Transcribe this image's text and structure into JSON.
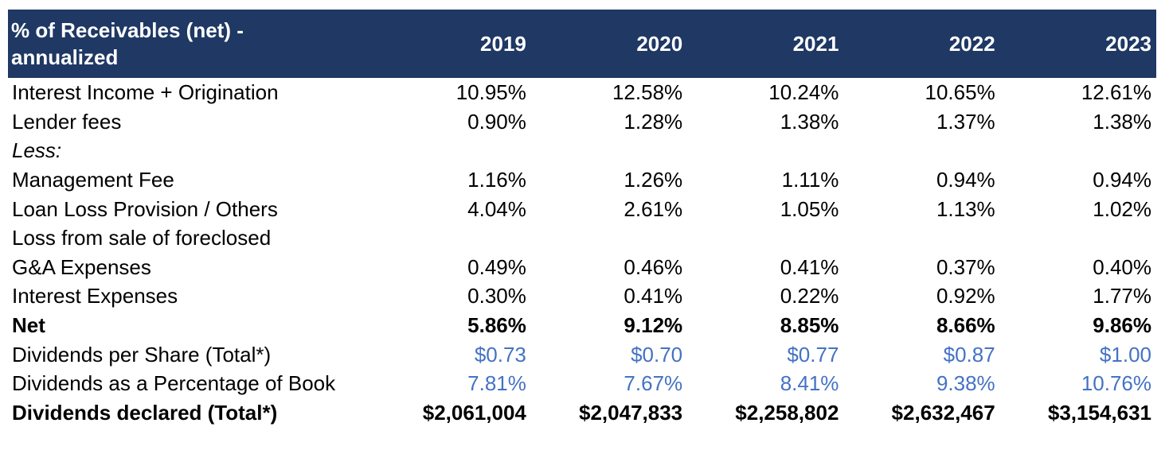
{
  "table": {
    "header": {
      "label_line1": "% of Receivables (net) -",
      "label_line2": "annualized",
      "years": [
        "2019",
        "2020",
        "2021",
        "2022",
        "2023"
      ]
    },
    "rows": [
      {
        "label": "Interest Income + Origination",
        "values": [
          "10.95%",
          "12.58%",
          "10.24%",
          "10.65%",
          "12.61%"
        ]
      },
      {
        "label": "Lender fees",
        "values": [
          "0.90%",
          "1.28%",
          "1.38%",
          "1.37%",
          "1.38%"
        ]
      },
      {
        "label": "Less:",
        "values": [
          "",
          "",
          "",
          "",
          ""
        ]
      },
      {
        "label": "Management Fee",
        "values": [
          "1.16%",
          "1.26%",
          "1.11%",
          "0.94%",
          "0.94%"
        ]
      },
      {
        "label": "Loan Loss Provision / Others",
        "values": [
          "4.04%",
          "2.61%",
          "1.05%",
          "1.13%",
          "1.02%"
        ]
      },
      {
        "label": "Loss from sale of foreclosed",
        "values": [
          "",
          "",
          "",
          "",
          ""
        ]
      },
      {
        "label": "G&A Expenses",
        "values": [
          "0.49%",
          "0.46%",
          "0.41%",
          "0.37%",
          "0.40%"
        ]
      },
      {
        "label": "Interest Expenses",
        "values": [
          "0.30%",
          "0.41%",
          "0.22%",
          "0.92%",
          "1.77%"
        ]
      },
      {
        "label": "Net",
        "values": [
          "5.86%",
          "9.12%",
          "8.85%",
          "8.66%",
          "9.86%"
        ]
      },
      {
        "label": "Dividends per Share (Total*)",
        "values": [
          "$0.73",
          "$0.70",
          "$0.77",
          "$0.87",
          "$1.00"
        ]
      },
      {
        "label": "Dividends as a Percentage of Book",
        "values": [
          "7.81%",
          "7.67%",
          "8.41%",
          "9.38%",
          "10.76%"
        ]
      },
      {
        "label": "Dividends declared (Total*)",
        "values": [
          "$2,061,004",
          "$2,047,833",
          "$2,258,802",
          "$2,632,467",
          "$3,154,631"
        ]
      }
    ],
    "colors": {
      "header_bg": "#1f3864",
      "header_text": "#ffffff",
      "blue_values": "#4472c4"
    }
  }
}
